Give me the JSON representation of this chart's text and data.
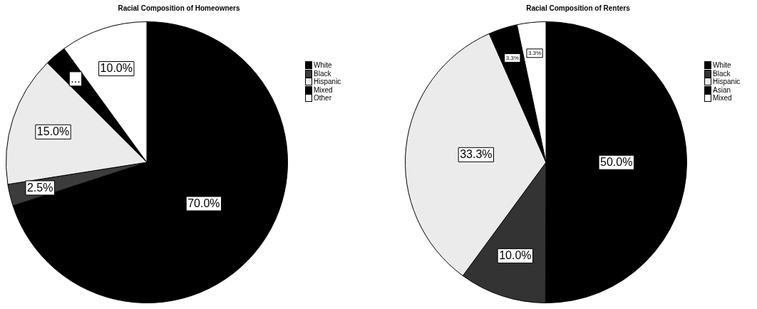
{
  "chart_data": [
    {
      "type": "pie",
      "title": "Racial Composition of Homeowners",
      "categories": [
        "White",
        "Black",
        "Hispanic",
        "Mixed",
        "Other"
      ],
      "values": [
        70,
        2.5,
        15,
        2.5,
        10
      ],
      "colors": [
        "#000000",
        "#3c3c3c",
        "#ebebeb",
        "#000000",
        "#ffffff"
      ],
      "value_labels": [
        "70.0%",
        "2.5%",
        "15.0%",
        "...",
        "10.0%"
      ],
      "legend": "right"
    },
    {
      "type": "pie",
      "title": "Racial Composition of Renters",
      "categories": [
        "White",
        "Black",
        "Hispanic",
        "Asian",
        "Mixed"
      ],
      "values": [
        50,
        10,
        33.3,
        3.3,
        3.3
      ],
      "colors": [
        "#000000",
        "#333333",
        "#ebebeb",
        "#000000",
        "#ffffff"
      ],
      "value_labels": [
        "50.0%",
        "10.0%",
        "33.3%",
        "3.3%",
        "3.3%"
      ],
      "legend": "right"
    }
  ]
}
